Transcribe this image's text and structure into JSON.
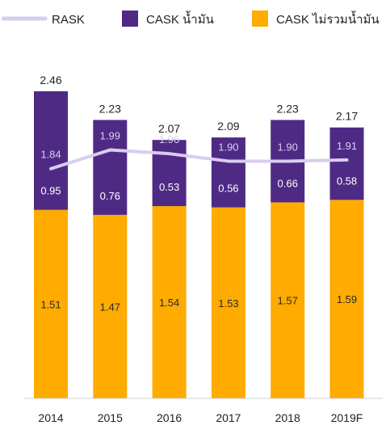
{
  "chart_data": {
    "type": "bar",
    "stacked": true,
    "categories": [
      "2014",
      "2015",
      "2016",
      "2017",
      "2018",
      "2019F"
    ],
    "series": [
      {
        "name": "CASK ไม่รวมน้ำมัน",
        "kind": "bar",
        "color": "#FFAB00",
        "values": [
          1.51,
          1.47,
          1.54,
          1.53,
          1.57,
          1.59
        ]
      },
      {
        "name": "CASK น้ำมัน",
        "kind": "bar",
        "color": "#4F2A85",
        "values": [
          0.95,
          0.76,
          0.53,
          0.56,
          0.66,
          0.58
        ]
      },
      {
        "name": "RASK",
        "kind": "line",
        "color": "#D9CDEF",
        "values": [
          1.84,
          1.99,
          1.96,
          1.9,
          1.9,
          1.91
        ]
      }
    ],
    "totals": [
      2.46,
      2.23,
      2.07,
      2.09,
      2.23,
      2.17
    ],
    "legend_order": [
      "RASK",
      "CASK น้ำมัน",
      "CASK ไม่รวมน้ำมัน"
    ],
    "legend_position": "top",
    "ylim": [
      0,
      2.46
    ],
    "grid": false
  }
}
